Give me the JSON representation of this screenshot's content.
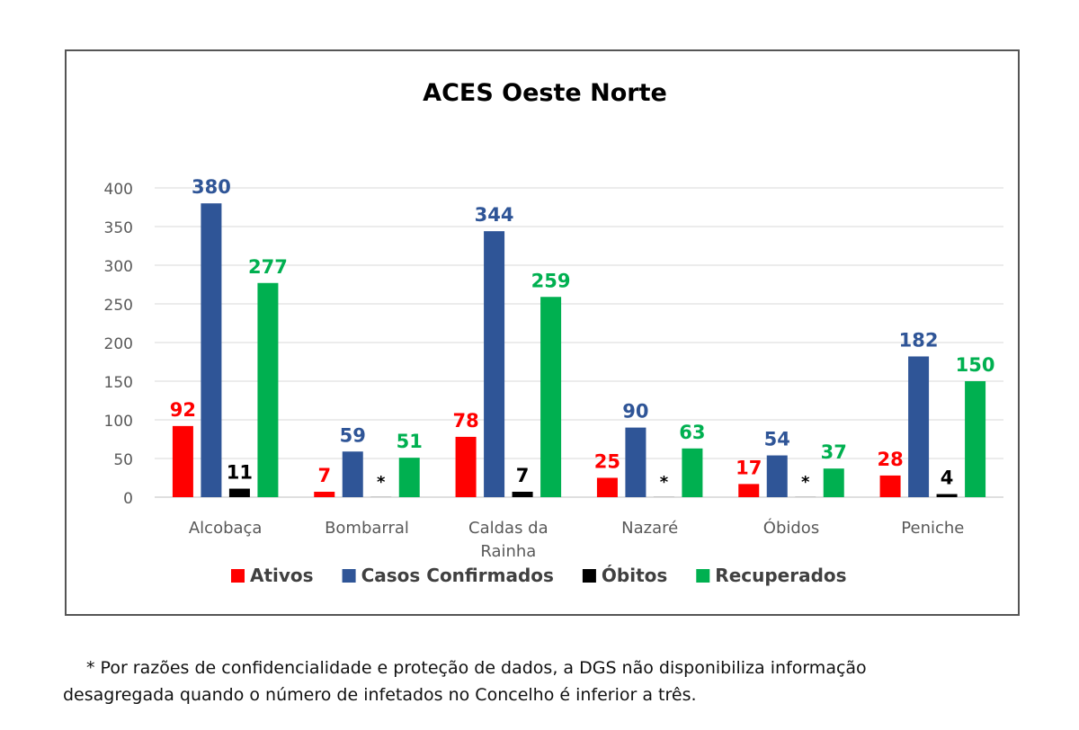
{
  "chart_data": {
    "type": "bar",
    "title": "ACES Oeste Norte",
    "categories": [
      "Alcobaça",
      "Bombarral",
      "Caldas da Rainha",
      "Nazaré",
      "Óbidos",
      "Peniche"
    ],
    "category_lines": [
      [
        "Alcobaça"
      ],
      [
        "Bombarral"
      ],
      [
        "Caldas da",
        "Rainha"
      ],
      [
        "Nazaré"
      ],
      [
        "Óbidos"
      ],
      [
        "Peniche"
      ]
    ],
    "series": [
      {
        "name": "Ativos",
        "color": "#ff0000",
        "values": [
          92,
          7,
          78,
          25,
          17,
          28
        ],
        "labels": [
          "92",
          "7",
          "78",
          "25",
          "17",
          "28"
        ]
      },
      {
        "name": "Casos Confirmados",
        "color": "#2f5597",
        "values": [
          380,
          59,
          344,
          90,
          54,
          182
        ],
        "labels": [
          "380",
          "59",
          "344",
          "90",
          "54",
          "182"
        ]
      },
      {
        "name": "Óbitos",
        "color": "#000000",
        "values": [
          11,
          0,
          7,
          0,
          0,
          4
        ],
        "labels": [
          "11",
          "*",
          "7",
          "*",
          "*",
          "4"
        ]
      },
      {
        "name": "Recuperados",
        "color": "#00b050",
        "values": [
          277,
          51,
          259,
          63,
          37,
          150
        ],
        "labels": [
          "277",
          "51",
          "259",
          "63",
          "37",
          "150"
        ]
      }
    ],
    "ylim": [
      0,
      400
    ],
    "yticks": [
      0,
      50,
      100,
      150,
      200,
      250,
      300,
      350,
      400
    ],
    "grid": true,
    "legend_position": "bottom"
  },
  "footnote": {
    "line1": "* Por razões de confidencialidade e proteção de dados, a DGS não disponibiliza informação",
    "line2": "desagregada quando o número de infetados no Concelho é inferior a três."
  }
}
